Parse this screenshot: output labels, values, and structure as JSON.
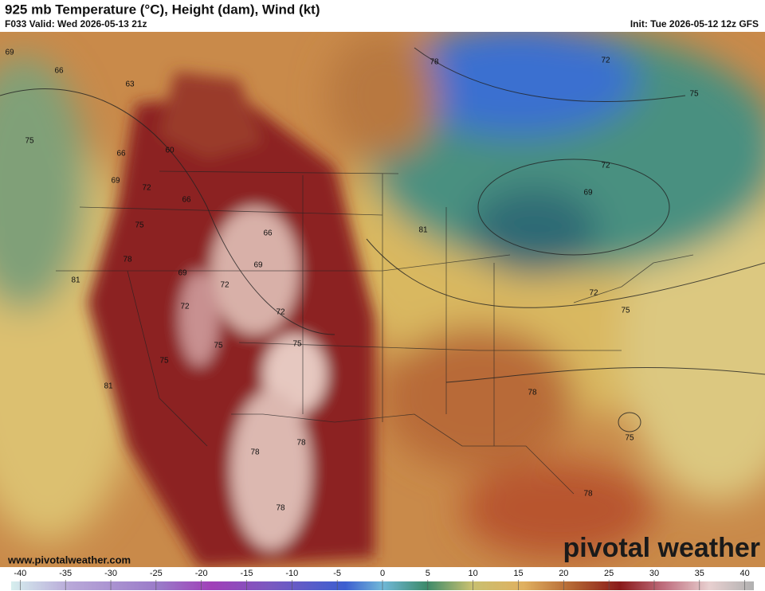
{
  "header": {
    "title": "925 mb Temperature (°C), Height (dam), Wind (kt)",
    "valid": "F033 Valid: Wed 2026-05-13 21z",
    "init": "Init: Tue 2026-05-12 12z GFS"
  },
  "map": {
    "website": "www.pivotalweather.com",
    "logo": "pivotal weather",
    "contour_labels": [
      "69",
      "66",
      "63",
      "66",
      "60",
      "75",
      "69",
      "72",
      "66",
      "75",
      "78",
      "81",
      "69",
      "72",
      "66",
      "69",
      "72",
      "72",
      "75",
      "75",
      "75",
      "81",
      "78",
      "78",
      "78",
      "78",
      "72",
      "75",
      "72",
      "69",
      "81",
      "72",
      "75",
      "78",
      "75",
      "78"
    ]
  },
  "colorbar": {
    "lim": [
      -41,
      41
    ],
    "ticks": [
      -40,
      -35,
      -30,
      -25,
      -20,
      -15,
      -10,
      -5,
      0,
      5,
      10,
      15,
      20,
      25,
      30,
      35,
      40
    ]
  }
}
